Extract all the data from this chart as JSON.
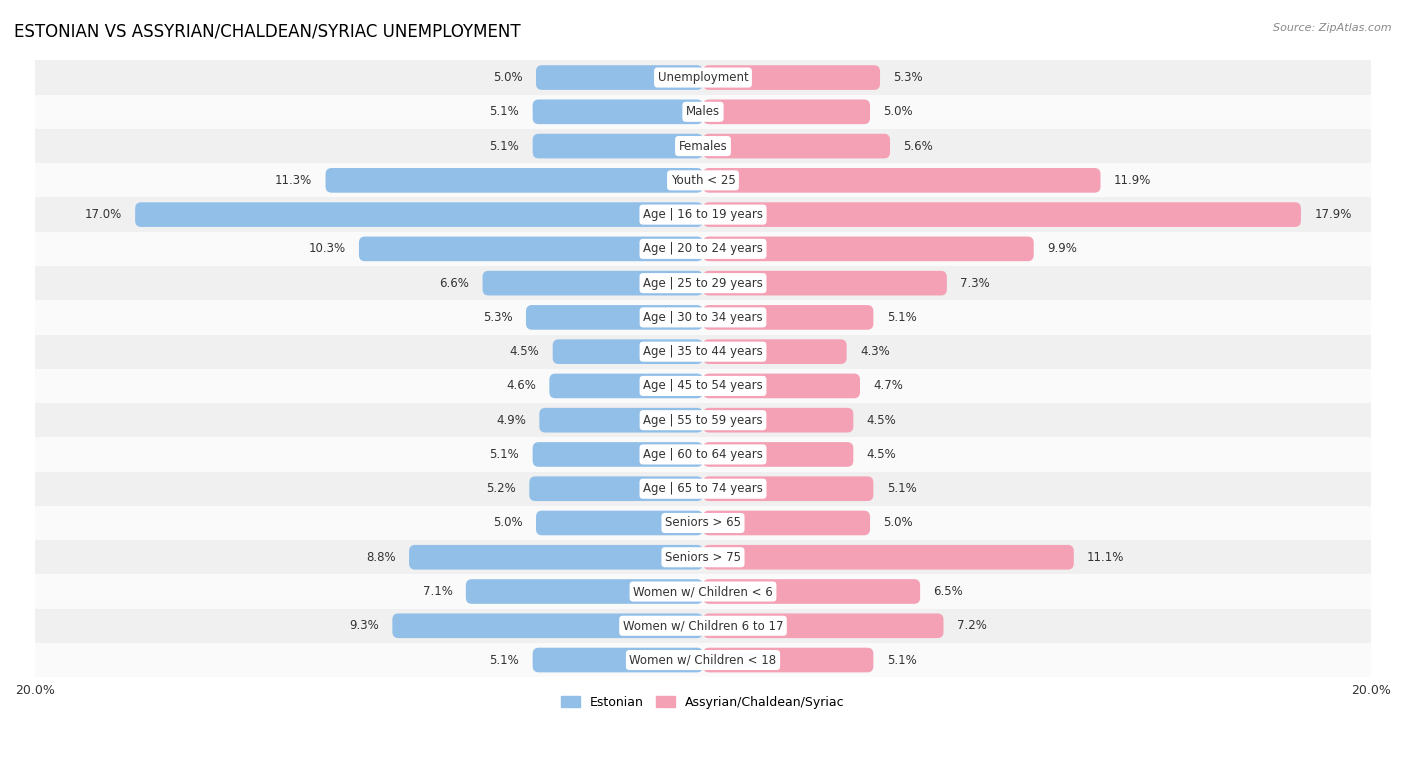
{
  "title": "ESTONIAN VS ASSYRIAN/CHALDEAN/SYRIAC UNEMPLOYMENT",
  "source": "Source: ZipAtlas.com",
  "categories": [
    "Unemployment",
    "Males",
    "Females",
    "Youth < 25",
    "Age | 16 to 19 years",
    "Age | 20 to 24 years",
    "Age | 25 to 29 years",
    "Age | 30 to 34 years",
    "Age | 35 to 44 years",
    "Age | 45 to 54 years",
    "Age | 55 to 59 years",
    "Age | 60 to 64 years",
    "Age | 65 to 74 years",
    "Seniors > 65",
    "Seniors > 75",
    "Women w/ Children < 6",
    "Women w/ Children 6 to 17",
    "Women w/ Children < 18"
  ],
  "estonian": [
    5.0,
    5.1,
    5.1,
    11.3,
    17.0,
    10.3,
    6.6,
    5.3,
    4.5,
    4.6,
    4.9,
    5.1,
    5.2,
    5.0,
    8.8,
    7.1,
    9.3,
    5.1
  ],
  "assyrian": [
    5.3,
    5.0,
    5.6,
    11.9,
    17.9,
    9.9,
    7.3,
    5.1,
    4.3,
    4.7,
    4.5,
    4.5,
    5.1,
    5.0,
    11.1,
    6.5,
    7.2,
    5.1
  ],
  "estonian_color": "#92bfe8",
  "assyrian_color": "#f4a0b5",
  "axis_max": 20.0,
  "legend_estonian": "Estonian",
  "legend_assyrian": "Assyrian/Chaldean/Syriac",
  "row_bg_odd": "#f0f0f0",
  "row_bg_even": "#fafafa",
  "label_fontsize": 8.5,
  "title_fontsize": 12,
  "source_fontsize": 8
}
